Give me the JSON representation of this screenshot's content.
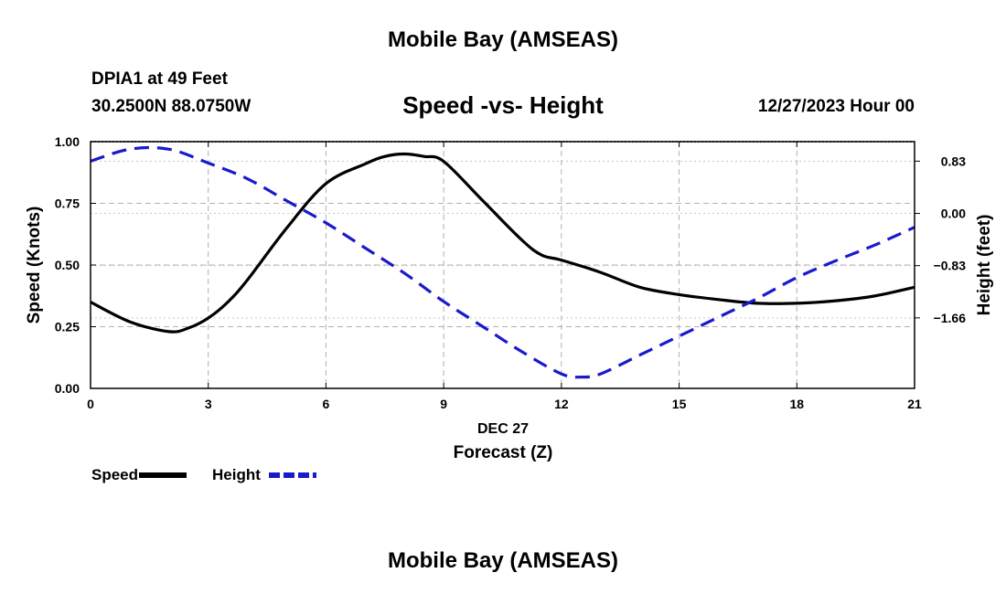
{
  "header": {
    "title": "Mobile Bay (AMSEAS)",
    "station": "DPIA1 at 49 Feet",
    "coords": "30.2500N  88.0750W",
    "subtitle": "Speed -vs- Height",
    "date": "12/27/2023 Hour 00"
  },
  "footer": {
    "title": "Mobile Bay (AMSEAS)"
  },
  "chart_data": {
    "type": "line",
    "title": "Speed -vs- Height",
    "xlabel": "Forecast (Z)",
    "xlabel_date": "DEC 27",
    "ylabel": "Speed (Knots)",
    "y2label": "Height (feet)",
    "xlim": [
      0,
      21
    ],
    "ylim": [
      0,
      1
    ],
    "y2lim": [
      -2.78,
      1.14
    ],
    "x_ticks": [
      "0",
      "3",
      "6",
      "9",
      "12",
      "15",
      "18",
      "21"
    ],
    "y_ticks": [
      "0.00",
      "0.25",
      "0.50",
      "0.75",
      "1.00"
    ],
    "y2_ticks": [
      "0.83",
      "0.00",
      "−0.83",
      "−1.66"
    ],
    "y2_tick_values": [
      0.83,
      0.0,
      -0.83,
      -1.66
    ],
    "grid": true,
    "series": [
      {
        "name": "Speed",
        "axis": "left",
        "color": "#000000",
        "dash": "solid",
        "x": [
          0,
          1,
          2,
          2.5,
          3,
          3.5,
          4,
          5,
          6,
          7,
          7.5,
          8,
          8.5,
          9,
          10,
          11,
          11.5,
          12,
          13,
          14,
          15,
          16,
          17,
          18,
          19,
          20,
          21
        ],
        "values": [
          0.35,
          0.27,
          0.23,
          0.245,
          0.285,
          0.35,
          0.44,
          0.65,
          0.83,
          0.91,
          0.94,
          0.95,
          0.94,
          0.92,
          0.76,
          0.6,
          0.54,
          0.52,
          0.47,
          0.41,
          0.38,
          0.36,
          0.345,
          0.345,
          0.355,
          0.375,
          0.41
        ]
      },
      {
        "name": "Height",
        "axis": "right",
        "color": "#1a1acc",
        "dash": "dashed",
        "x": [
          0,
          1,
          2,
          3,
          4,
          5,
          6,
          7,
          8,
          9,
          10,
          11,
          12,
          12.5,
          13,
          14,
          15,
          16,
          17,
          18,
          19,
          20,
          21
        ],
        "values": [
          0.83,
          1.02,
          1.02,
          0.8,
          0.55,
          0.2,
          -0.15,
          -0.55,
          -0.95,
          -1.4,
          -1.8,
          -2.2,
          -2.55,
          -2.6,
          -2.55,
          -2.25,
          -1.95,
          -1.65,
          -1.35,
          -1.02,
          -0.75,
          -0.5,
          -0.22
        ]
      }
    ],
    "legend": [
      {
        "label": "Speed",
        "color": "#000000",
        "dash": "solid"
      },
      {
        "label": "Height",
        "color": "#1a1acc",
        "dash": "dashed"
      }
    ],
    "legend_position": "bottom-left"
  }
}
